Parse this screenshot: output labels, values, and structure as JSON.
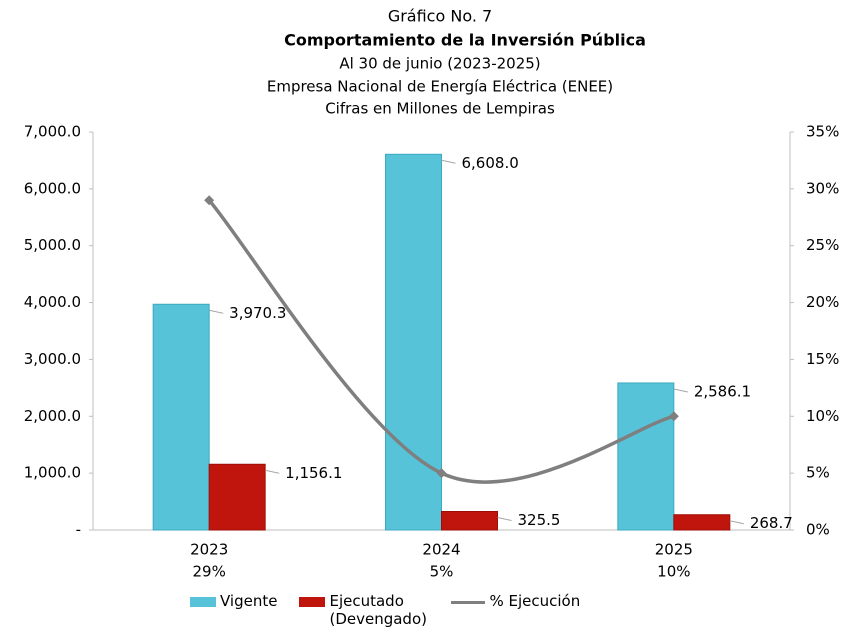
{
  "chart_data": {
    "type": "bar",
    "chart_number": "Gráfico No. 7",
    "title": "Comportamiento de la Inversión Pública",
    "subtitles": [
      "Al 30 de junio (2023-2025)",
      "Empresa Nacional de Energía Eléctrica (ENEE)",
      "Cifras en Millones de Lempiras"
    ],
    "categories": [
      "2023",
      "2024",
      "2025"
    ],
    "series": [
      {
        "name": "Vigente",
        "color": "#56c3d9",
        "values": [
          3970.3,
          6608.0,
          2586.1
        ],
        "value_labels": [
          "3,970.3",
          "6,608.0",
          "2,586.1"
        ]
      },
      {
        "name": "Ejecutado (Devengado)",
        "color": "#c0150c",
        "values": [
          1156.1,
          325.5,
          268.7
        ],
        "value_labels": [
          "1,156.1",
          "325.5",
          "268.7"
        ]
      },
      {
        "name": "% Ejecución",
        "type": "line",
        "axis": "y2",
        "color": "#7f7f7f",
        "values": [
          29,
          5,
          10
        ],
        "value_labels": [
          "29%",
          "5%",
          "10%"
        ]
      }
    ],
    "ylim": [
      0,
      7000
    ],
    "yticks": [
      {
        "value": 0,
        "label": "-"
      },
      {
        "value": 1000,
        "label": "1,000.0"
      },
      {
        "value": 2000,
        "label": "2,000.0"
      },
      {
        "value": 3000,
        "label": "3,000.0"
      },
      {
        "value": 4000,
        "label": "4,000.0"
      },
      {
        "value": 5000,
        "label": "5,000.0"
      },
      {
        "value": 6000,
        "label": "6,000.0"
      },
      {
        "value": 7000,
        "label": "7,000.0"
      }
    ],
    "y2lim": [
      0,
      35
    ],
    "y2ticks": [
      {
        "value": 0,
        "label": "0%"
      },
      {
        "value": 5,
        "label": "5%"
      },
      {
        "value": 10,
        "label": "10%"
      },
      {
        "value": 15,
        "label": "15%"
      },
      {
        "value": 20,
        "label": "20%"
      },
      {
        "value": 25,
        "label": "25%"
      },
      {
        "value": 30,
        "label": "30%"
      },
      {
        "value": 35,
        "label": "35%"
      }
    ],
    "grid": false
  }
}
